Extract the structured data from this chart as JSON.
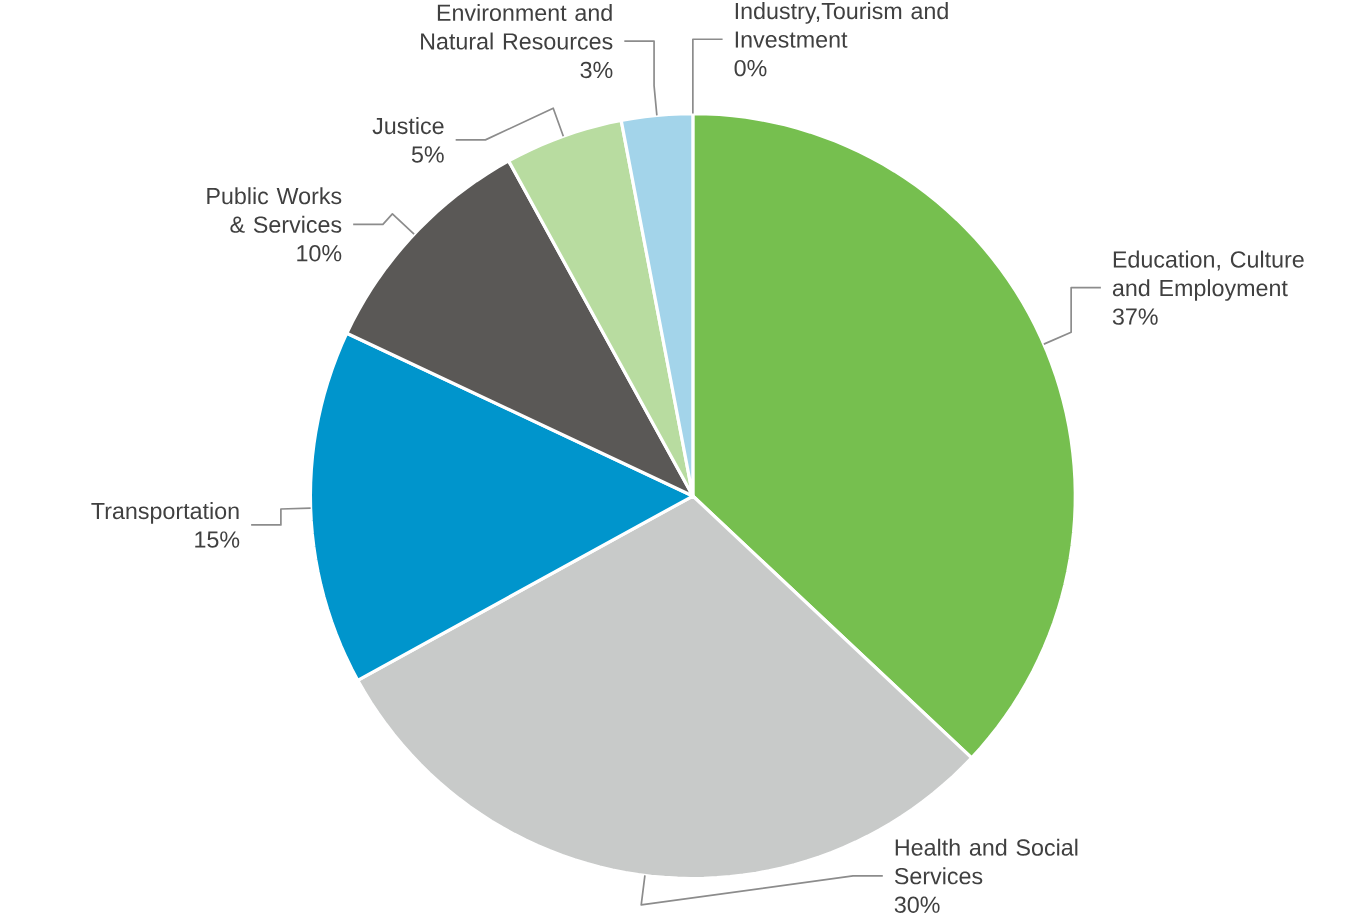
{
  "chart_data": {
    "type": "pie",
    "categories": [
      "Education, Culture and Employment",
      "Health and Social Services",
      "Transportation",
      "Public Works & Services",
      "Justice",
      "Environment and Natural Resources",
      "Industry,Tourism and Investment"
    ],
    "values": [
      37,
      30,
      15,
      10,
      5,
      3,
      0
    ],
    "value_labels": [
      "37%",
      "30%",
      "15%",
      "10%",
      "5%",
      "3%",
      "0%"
    ],
    "colors": [
      "#76bf4f",
      "#c8cac9",
      "#0095cc",
      "#5a5856",
      "#b8dca0",
      "#a3d4ea",
      "#e0e0e0"
    ],
    "legend": false
  }
}
